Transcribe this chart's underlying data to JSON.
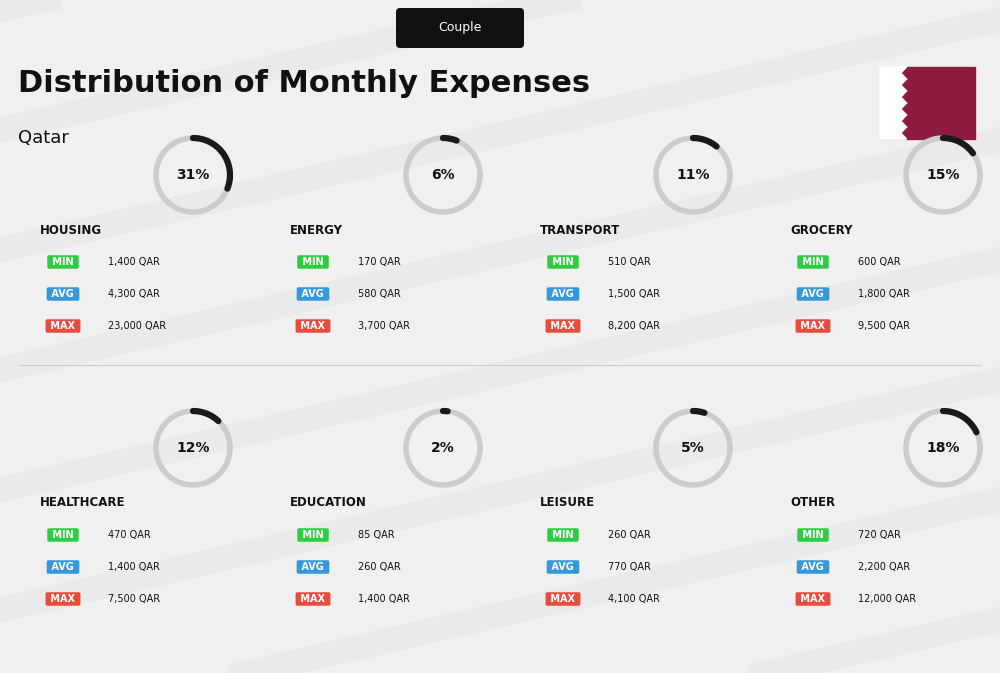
{
  "title": "Distribution of Monthly Expenses",
  "subtitle": "Qatar",
  "tab_label": "Couple",
  "background_color": "#f0f0f0",
  "categories": [
    {
      "name": "HOUSING",
      "percent": 31,
      "min_val": "1,400 QAR",
      "avg_val": "4,300 QAR",
      "max_val": "23,000 QAR",
      "col": 0,
      "row": 0
    },
    {
      "name": "ENERGY",
      "percent": 6,
      "min_val": "170 QAR",
      "avg_val": "580 QAR",
      "max_val": "3,700 QAR",
      "col": 1,
      "row": 0
    },
    {
      "name": "TRANSPORT",
      "percent": 11,
      "min_val": "510 QAR",
      "avg_val": "1,500 QAR",
      "max_val": "8,200 QAR",
      "col": 2,
      "row": 0
    },
    {
      "name": "GROCERY",
      "percent": 15,
      "min_val": "600 QAR",
      "avg_val": "1,800 QAR",
      "max_val": "9,500 QAR",
      "col": 3,
      "row": 0
    },
    {
      "name": "HEALTHCARE",
      "percent": 12,
      "min_val": "470 QAR",
      "avg_val": "1,400 QAR",
      "max_val": "7,500 QAR",
      "col": 0,
      "row": 1
    },
    {
      "name": "EDUCATION",
      "percent": 2,
      "min_val": "85 QAR",
      "avg_val": "260 QAR",
      "max_val": "1,400 QAR",
      "col": 1,
      "row": 1
    },
    {
      "name": "LEISURE",
      "percent": 5,
      "min_val": "260 QAR",
      "avg_val": "770 QAR",
      "max_val": "4,100 QAR",
      "col": 2,
      "row": 1
    },
    {
      "name": "OTHER",
      "percent": 18,
      "min_val": "720 QAR",
      "avg_val": "2,200 QAR",
      "max_val": "12,000 QAR",
      "col": 3,
      "row": 1
    }
  ],
  "min_color": "#2ecc40",
  "avg_color": "#3498db",
  "max_color": "#e74c3c",
  "label_color_light": "#ffffff",
  "dark_color": "#111111",
  "circle_bg_color": "#dddddd",
  "circle_dark_color": "#222222"
}
